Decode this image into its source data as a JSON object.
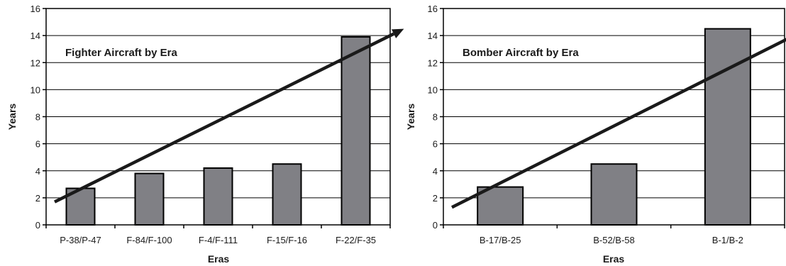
{
  "chart_data": [
    {
      "type": "bar",
      "title": "Fighter Aircraft by Era",
      "xlabel": "Eras",
      "ylabel": "Years",
      "ylim": [
        0,
        16
      ],
      "yticks": [
        0,
        2,
        4,
        6,
        8,
        10,
        12,
        14,
        16
      ],
      "categories": [
        "P-38/P-47",
        "F-84/F-100",
        "F-4/F-111",
        "F-15/F-16",
        "F-22/F-35"
      ],
      "values": [
        2.7,
        3.8,
        4.2,
        4.5,
        13.9
      ],
      "grid": true,
      "trend_arrow": {
        "from": [
          0,
          1.7
        ],
        "to": [
          4.7,
          14.5
        ]
      }
    },
    {
      "type": "bar",
      "title": "Bomber Aircraft by Era",
      "xlabel": "Eras",
      "ylabel": "Years",
      "ylim": [
        0,
        16
      ],
      "yticks": [
        0,
        2,
        4,
        6,
        8,
        10,
        12,
        14,
        16
      ],
      "categories": [
        "B-17/B-25",
        "B-52/B-58",
        "B-1/B-2"
      ],
      "values": [
        2.8,
        4.5,
        14.5
      ],
      "grid": true,
      "trend_arrow": {
        "from": [
          0,
          1.3
        ],
        "to": [
          2.75,
          14.7
        ]
      }
    }
  ],
  "colors": {
    "bar_fill": "#808085",
    "bar_stroke": "#000000",
    "trend": "#1a1a1a",
    "gridline": "#000000"
  }
}
